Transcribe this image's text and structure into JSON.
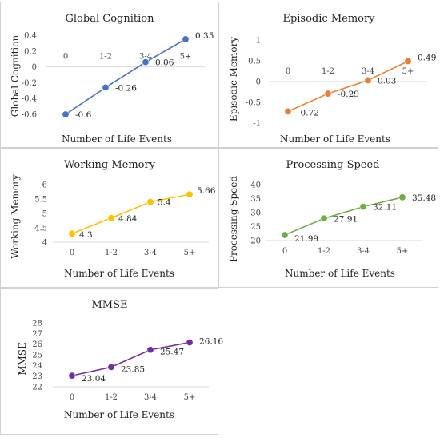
{
  "chart_data": [
    {
      "type": "line",
      "title": "Global Cognition",
      "xlabel": "Number of Life Events",
      "ylabel": "Global Cognition",
      "categories": [
        "0",
        "1-2",
        "3-4",
        "5+"
      ],
      "values": [
        -0.6,
        -0.26,
        0.06,
        0.35
      ],
      "data_labels": [
        "-0.6",
        "-0.26",
        "0.06",
        "0.35"
      ],
      "ylim": [
        -0.6,
        0.4
      ],
      "yticks": [
        "0.4",
        "0.2",
        "0",
        "-0.2",
        "-0.4",
        "-0.6"
      ],
      "category_axis_at": 0,
      "grid": false,
      "color": "#4472C4"
    },
    {
      "type": "line",
      "title": "Episodic Memory",
      "xlabel": "Number of Life Events",
      "ylabel": "Episodic Memory",
      "categories": [
        "0",
        "1-2",
        "3-4",
        "5+"
      ],
      "values": [
        -0.72,
        -0.29,
        0.03,
        0.49
      ],
      "data_labels": [
        "-0.72",
        "-0.29",
        "0.03",
        "0.49"
      ],
      "ylim": [
        -1,
        1
      ],
      "yticks": [
        "1",
        "0.5",
        "0",
        "-0.5",
        "-1"
      ],
      "category_axis_at": 0,
      "grid": false,
      "color": "#ED7D31"
    },
    {
      "type": "line",
      "title": "Working Memory",
      "xlabel": "Number of Life Events",
      "ylabel": "Working Memory",
      "categories": [
        "0",
        "1-2",
        "3-4",
        "5+"
      ],
      "values": [
        4.3,
        4.84,
        5.4,
        5.66
      ],
      "data_labels": [
        "4.3",
        "4.84",
        "5.4",
        "5.66"
      ],
      "ylim": [
        4,
        6
      ],
      "yticks": [
        "6",
        "5.5",
        "5",
        "4.5",
        "4"
      ],
      "category_axis_at": 4,
      "grid": false,
      "color": "#FFC000"
    },
    {
      "type": "line",
      "title": "Processing Speed",
      "xlabel": "Number of Life Events",
      "ylabel": "Processing Speed",
      "categories": [
        "0",
        "1-2",
        "3-4",
        "5+"
      ],
      "values": [
        21.99,
        27.91,
        32.11,
        35.48
      ],
      "data_labels": [
        "21.99",
        "27.91",
        "32.11",
        "35.48"
      ],
      "ylim": [
        20,
        40
      ],
      "yticks": [
        "40",
        "35",
        "30",
        "25",
        "20"
      ],
      "category_axis_at": 20,
      "grid": false,
      "color": "#70AD47"
    },
    {
      "type": "line",
      "title": "MMSE",
      "xlabel": "Number of Life Events",
      "ylabel": "MMSE",
      "categories": [
        "0",
        "1-2",
        "3-4",
        "5+"
      ],
      "values": [
        23.04,
        23.85,
        25.47,
        26.16
      ],
      "data_labels": [
        "23.04",
        "23.85",
        "25.47",
        "26.16"
      ],
      "ylim": [
        22,
        28
      ],
      "yticks": [
        "28",
        "27",
        "26",
        "25",
        "24",
        "23",
        "22"
      ],
      "category_axis_at": 22,
      "grid": false,
      "color": "#7030A0"
    }
  ]
}
